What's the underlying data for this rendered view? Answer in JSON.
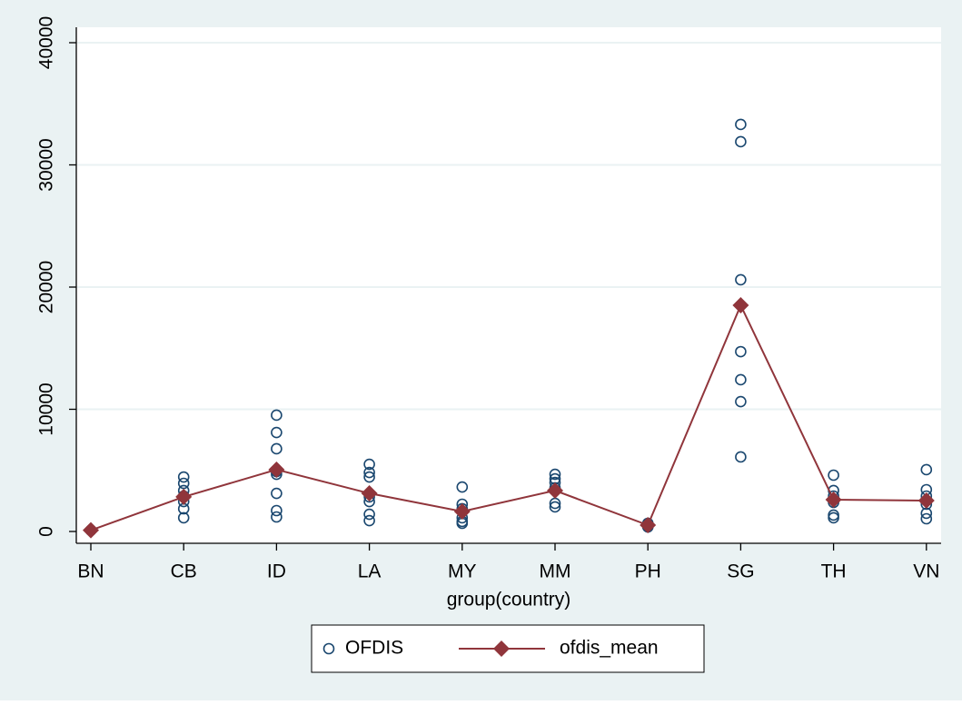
{
  "chart_data": {
    "type": "scatter-line",
    "x_label": "group(country)",
    "categories": [
      "BN",
      "CB",
      "ID",
      "LA",
      "MY",
      "MM",
      "PH",
      "SG",
      "TH",
      "VN"
    ],
    "ylim": [
      0,
      40000
    ],
    "yticks": [
      0,
      10000,
      20000,
      30000,
      40000
    ],
    "grid": true,
    "legend": "bottom",
    "series": [
      {
        "name": "OFDIS",
        "color": "#1a476f",
        "marker": "circle",
        "values": [
          [
            100
          ],
          [
            4460,
            3940,
            3350,
            2900,
            2450,
            1860,
            1120
          ],
          [
            9520,
            8100,
            6770,
            4900,
            4680,
            3120,
            1710,
            1190
          ],
          [
            5500,
            4830,
            4460,
            2830,
            2450,
            1410,
            890
          ],
          [
            3640,
            2230,
            1860,
            1120,
            820,
            670
          ],
          [
            4680,
            4310,
            4010,
            3570,
            2300,
            2010
          ],
          [
            670,
            450,
            370
          ],
          [
            33310,
            31900,
            20600,
            14720,
            12420,
            10630,
            6100
          ],
          [
            4610,
            3350,
            2900,
            2380,
            1340,
            1120
          ],
          [
            5060,
            3420,
            2900,
            2230,
            1490,
            1040
          ]
        ]
      },
      {
        "name": "ofdis_mean",
        "color": "#90353b",
        "marker": "diamond",
        "values": [
          100,
          2830,
          5060,
          3120,
          1640,
          3350,
          520,
          18510,
          2600,
          2530
        ]
      }
    ]
  }
}
